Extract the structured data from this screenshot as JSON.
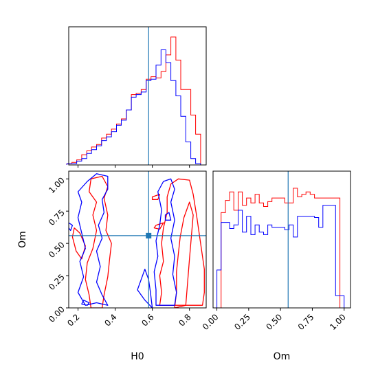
{
  "chart_data": {
    "type": "corner",
    "parameters": [
      "H0",
      "Om"
    ],
    "truth": {
      "H0": 0.58,
      "Om": 0.56,
      "color": "#1f77b4"
    },
    "series": [
      {
        "color": "#ff0000"
      },
      {
        "color": "#0000ff"
      }
    ],
    "panels": [
      {
        "id": "hist-H0",
        "type": "histogram",
        "xlim": [
          0.15,
          0.89
        ],
        "ylim": [
          0,
          1.08
        ],
        "edges": [
          0.14,
          0.167,
          0.193,
          0.22,
          0.247,
          0.273,
          0.3,
          0.327,
          0.353,
          0.38,
          0.407,
          0.433,
          0.46,
          0.487,
          0.513,
          0.54,
          0.567,
          0.593,
          0.62,
          0.647,
          0.673,
          0.7,
          0.727,
          0.753,
          0.78,
          0.807,
          0.833,
          0.86
        ],
        "counts": [
          [
            0.01,
            0.02,
            0.04,
            0.08,
            0.11,
            0.14,
            0.16,
            0.21,
            0.24,
            0.28,
            0.32,
            0.36,
            0.43,
            0.55,
            0.56,
            0.59,
            0.67,
            0.69,
            0.68,
            0.73,
            0.86,
            1.0,
            0.82,
            0.59,
            0.59,
            0.39,
            0.24
          ],
          [
            0.01,
            0.01,
            0.03,
            0.05,
            0.09,
            0.12,
            0.15,
            0.19,
            0.22,
            0.26,
            0.31,
            0.35,
            0.43,
            0.53,
            0.55,
            0.57,
            0.66,
            0.67,
            0.78,
            0.9,
            0.8,
            0.66,
            0.54,
            0.38,
            0.18,
            0.05,
            0.01
          ]
        ],
        "xticks": [
          0.2,
          0.4,
          0.6,
          0.8
        ],
        "yticks": []
      },
      {
        "id": "contour-H0-Om",
        "type": "contour",
        "xlim": [
          0.15,
          0.89
        ],
        "ylim": [
          0.0,
          1.06
        ],
        "xticks": [
          0.2,
          0.4,
          0.6,
          0.8
        ],
        "xtick_labels": [
          "0.2",
          "0.4",
          "0.6",
          "0.8"
        ],
        "yticks": [
          0.0,
          0.25,
          0.5,
          0.75,
          1.0
        ],
        "ytick_labels": [
          "0.00",
          "0.25",
          "0.50",
          "0.75",
          "1.00"
        ],
        "xlabel": "H0",
        "ylabel": "Om",
        "contours": [
          {
            "series": 0,
            "points": [
              [
                0.64,
                0.02
              ],
              [
                0.65,
                0.12
              ],
              [
                0.64,
                0.25
              ],
              [
                0.66,
                0.36
              ],
              [
                0.65,
                0.5
              ],
              [
                0.66,
                0.62
              ],
              [
                0.68,
                0.74
              ],
              [
                0.68,
                0.86
              ],
              [
                0.7,
                0.96
              ],
              [
                0.74,
                1.0
              ],
              [
                0.8,
                0.99
              ],
              [
                0.82,
                0.88
              ],
              [
                0.84,
                0.7
              ],
              [
                0.86,
                0.5
              ],
              [
                0.88,
                0.3
              ],
              [
                0.88,
                0.12
              ],
              [
                0.87,
                0.02
              ]
            ]
          },
          {
            "series": 0,
            "points": [
              [
                0.72,
                0.0
              ],
              [
                0.73,
                0.12
              ],
              [
                0.73,
                0.28
              ],
              [
                0.74,
                0.42
              ],
              [
                0.75,
                0.55
              ],
              [
                0.77,
                0.7
              ],
              [
                0.8,
                0.82
              ],
              [
                0.82,
                0.72
              ],
              [
                0.81,
                0.55
              ],
              [
                0.8,
                0.38
              ],
              [
                0.79,
                0.2
              ],
              [
                0.78,
                0.02
              ]
            ]
          },
          {
            "series": 0,
            "points": [
              [
                0.27,
                0.0
              ],
              [
                0.26,
                0.1
              ],
              [
                0.24,
                0.22
              ],
              [
                0.25,
                0.35
              ],
              [
                0.28,
                0.46
              ],
              [
                0.3,
                0.6
              ],
              [
                0.28,
                0.72
              ],
              [
                0.3,
                0.82
              ],
              [
                0.26,
                0.9
              ],
              [
                0.27,
                1.0
              ],
              [
                0.33,
                1.02
              ],
              [
                0.36,
                0.94
              ],
              [
                0.34,
                0.85
              ],
              [
                0.36,
                0.72
              ],
              [
                0.35,
                0.6
              ],
              [
                0.38,
                0.5
              ],
              [
                0.37,
                0.38
              ],
              [
                0.36,
                0.24
              ],
              [
                0.34,
                0.1
              ],
              [
                0.33,
                0.0
              ]
            ]
          },
          {
            "series": 0,
            "points": [
              [
                0.18,
                0.62
              ],
              [
                0.21,
                0.58
              ],
              [
                0.24,
                0.48
              ],
              [
                0.22,
                0.38
              ],
              [
                0.19,
                0.44
              ],
              [
                0.17,
                0.55
              ]
            ]
          },
          {
            "series": 0,
            "points": [
              [
                0.6,
                0.86
              ],
              [
                0.64,
                0.88
              ],
              [
                0.63,
                0.84
              ],
              [
                0.6,
                0.84
              ]
            ]
          },
          {
            "series": 0,
            "points": [
              [
                0.62,
                0.64
              ],
              [
                0.66,
                0.66
              ],
              [
                0.64,
                0.61
              ],
              [
                0.61,
                0.62
              ]
            ]
          },
          {
            "series": 1,
            "points": [
              [
                0.36,
                0.02
              ],
              [
                0.3,
                0.04
              ],
              [
                0.24,
                0.02
              ],
              [
                0.2,
                0.12
              ],
              [
                0.23,
                0.24
              ],
              [
                0.21,
                0.36
              ],
              [
                0.24,
                0.46
              ],
              [
                0.22,
                0.58
              ],
              [
                0.2,
                0.7
              ],
              [
                0.22,
                0.82
              ],
              [
                0.2,
                0.9
              ],
              [
                0.25,
                0.98
              ],
              [
                0.3,
                1.04
              ],
              [
                0.36,
                1.02
              ],
              [
                0.36,
                0.92
              ],
              [
                0.33,
                0.84
              ],
              [
                0.34,
                0.74
              ],
              [
                0.31,
                0.64
              ],
              [
                0.33,
                0.54
              ],
              [
                0.3,
                0.44
              ],
              [
                0.32,
                0.32
              ],
              [
                0.3,
                0.2
              ],
              [
                0.33,
                0.1
              ]
            ]
          },
          {
            "series": 1,
            "points": [
              [
                0.62,
                0.02
              ],
              [
                0.62,
                0.14
              ],
              [
                0.61,
                0.28
              ],
              [
                0.63,
                0.4
              ],
              [
                0.62,
                0.52
              ],
              [
                0.64,
                0.64
              ],
              [
                0.65,
                0.76
              ],
              [
                0.63,
                0.9
              ],
              [
                0.66,
                0.98
              ],
              [
                0.7,
                1.0
              ],
              [
                0.72,
                0.92
              ],
              [
                0.7,
                0.82
              ],
              [
                0.72,
                0.68
              ],
              [
                0.7,
                0.54
              ],
              [
                0.72,
                0.4
              ],
              [
                0.71,
                0.26
              ],
              [
                0.73,
                0.12
              ],
              [
                0.72,
                0.02
              ]
            ]
          },
          {
            "series": 1,
            "points": [
              [
                0.6,
                0.0
              ],
              [
                0.56,
                0.06
              ],
              [
                0.52,
                0.14
              ],
              [
                0.54,
                0.22
              ],
              [
                0.56,
                0.3
              ],
              [
                0.58,
                0.22
              ],
              [
                0.59,
                0.12
              ]
            ]
          },
          {
            "series": 1,
            "points": [
              [
                0.15,
                0.66
              ],
              [
                0.17,
                0.64
              ],
              [
                0.16,
                0.6
              ],
              [
                0.15,
                0.62
              ]
            ]
          },
          {
            "series": 1,
            "points": [
              [
                0.67,
                0.72
              ],
              [
                0.69,
                0.74
              ],
              [
                0.7,
                0.68
              ],
              [
                0.67,
                0.68
              ]
            ]
          },
          {
            "series": 1,
            "points": [
              [
                0.23,
                0.06
              ],
              [
                0.26,
                0.04
              ],
              [
                0.25,
                0.02
              ],
              [
                0.22,
                0.03
              ]
            ]
          }
        ]
      },
      {
        "id": "hist-Om",
        "type": "histogram",
        "xlim": [
          -0.03,
          1.05
        ],
        "ylim": [
          0,
          1.12
        ],
        "edges": [
          0.0,
          0.033,
          0.067,
          0.1,
          0.133,
          0.167,
          0.2,
          0.233,
          0.267,
          0.3,
          0.333,
          0.367,
          0.4,
          0.433,
          0.467,
          0.5,
          0.533,
          0.567,
          0.6,
          0.633,
          0.667,
          0.7,
          0.733,
          0.767,
          0.8,
          0.833,
          0.867,
          0.9,
          0.933,
          0.967,
          1.0
        ],
        "counts": [
          [
            0.0,
            0.78,
            0.88,
            0.95,
            0.8,
            0.95,
            0.84,
            0.9,
            0.86,
            0.93,
            0.86,
            0.83,
            0.87,
            0.9,
            0.9,
            0.9,
            0.86,
            0.86,
            0.98,
            0.91,
            0.93,
            0.95,
            0.93,
            0.9,
            0.9,
            0.9,
            0.9,
            0.9,
            0.9,
            0.0
          ],
          [
            0.31,
            0.7,
            0.7,
            0.65,
            0.68,
            0.8,
            0.62,
            0.75,
            0.6,
            0.68,
            0.62,
            0.6,
            0.68,
            0.66,
            0.66,
            0.66,
            0.64,
            0.68,
            0.58,
            0.75,
            0.75,
            0.75,
            0.75,
            0.74,
            0.66,
            0.84,
            0.84,
            0.84,
            0.1,
            0.1
          ]
        ],
        "xticks": [
          0.0,
          0.25,
          0.5,
          0.75,
          1.0
        ],
        "xtick_labels": [
          "0.00",
          "0.25",
          "0.50",
          "0.75",
          "1.00"
        ],
        "xlabel": "Om"
      }
    ]
  }
}
